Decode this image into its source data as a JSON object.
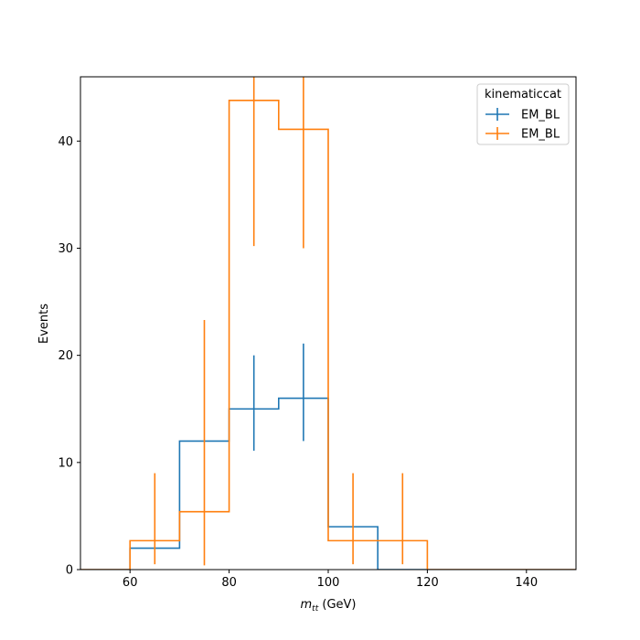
{
  "chart_data": {
    "type": "histogram-step",
    "xlabel_main": "m",
    "xlabel_sub": "tt",
    "xlabel_unit": " (GeV)",
    "ylabel": "Events",
    "xlim": [
      50,
      150
    ],
    "ylim": [
      0,
      46
    ],
    "xticks": [
      60,
      80,
      100,
      120,
      140
    ],
    "yticks": [
      0,
      10,
      20,
      30,
      40
    ],
    "bin_edges": [
      50,
      60,
      70,
      80,
      90,
      100,
      110,
      120,
      130,
      140,
      150
    ],
    "legend": {
      "title": "kinematiccat",
      "placement": "top-right"
    },
    "series": [
      {
        "name": "EM_BL",
        "color": "#1f77b4",
        "values": [
          0,
          2,
          12,
          15,
          16,
          4,
          0,
          0,
          0,
          0
        ],
        "errors": [
          null,
          null,
          null,
          [
            11.1,
            20.0
          ],
          [
            12.0,
            21.1
          ],
          null,
          null,
          null,
          null,
          null
        ]
      },
      {
        "name": "EM_BL",
        "color": "#ff7f0e",
        "values": [
          0,
          2.7,
          5.4,
          43.8,
          41.1,
          2.7,
          2.7,
          0,
          0,
          0
        ],
        "errors": [
          null,
          [
            0.5,
            9.0
          ],
          [
            0.4,
            23.3
          ],
          [
            30.2,
            46
          ],
          [
            30.0,
            46
          ],
          [
            0.5,
            9.0
          ],
          [
            0.5,
            9.0
          ],
          null,
          null,
          null
        ]
      }
    ]
  }
}
